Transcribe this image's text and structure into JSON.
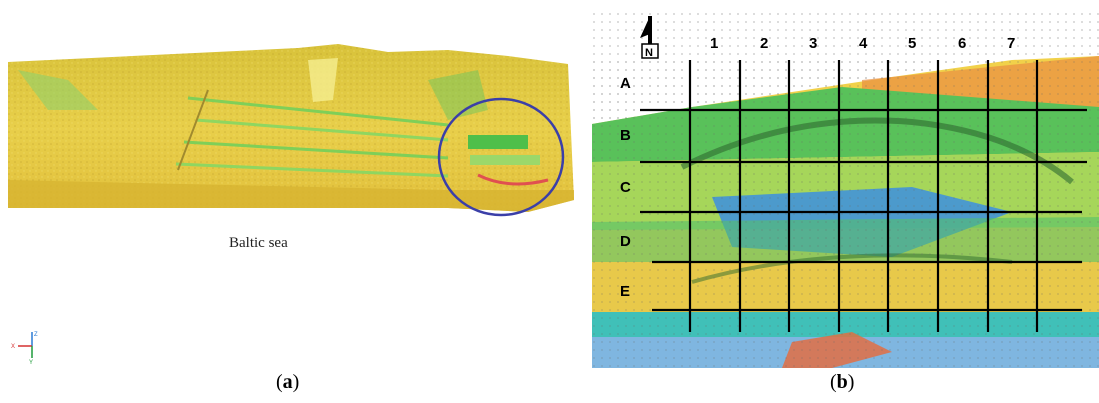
{
  "panel_a": {
    "sea_label": "Baltic sea",
    "caption": {
      "open": "(",
      "letter": "a",
      "close": ")"
    },
    "axes": {
      "x": "X",
      "y": "Y",
      "z": "Z"
    }
  },
  "panel_b": {
    "caption": {
      "open": "(",
      "letter": "b",
      "close": ")"
    },
    "column_labels": [
      "1",
      "2",
      "3",
      "4",
      "5",
      "6",
      "7"
    ],
    "row_labels": [
      "A",
      "B",
      "C",
      "D",
      "E"
    ]
  },
  "colors": {
    "circle": "#3b3fa8",
    "grid": "#000000"
  }
}
